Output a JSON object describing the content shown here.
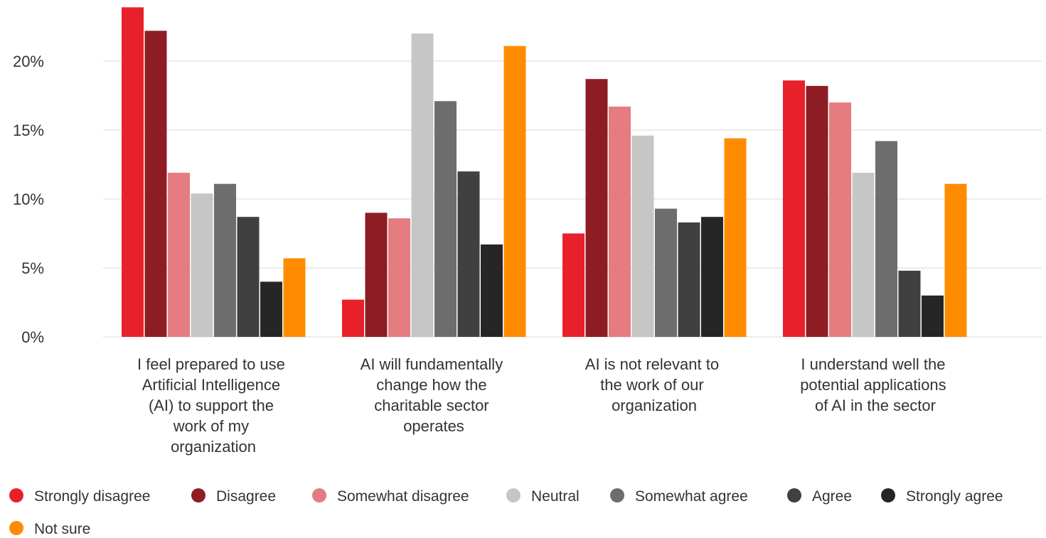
{
  "chart_data": {
    "type": "bar",
    "categories": [
      [
        "I feel prepared to use",
        "Artificial Intelligence",
        "(AI) to support the",
        "work of my",
        "organization"
      ],
      [
        "AI will fundamentally",
        "change how the",
        "charitable sector",
        "operates"
      ],
      [
        "AI is not relevant to",
        "the work of our",
        "organization"
      ],
      [
        "I understand well the",
        "potential applications",
        "of AI in the sector"
      ]
    ],
    "series": [
      {
        "name": "Strongly disagree",
        "color": "#e8202a",
        "values": [
          23.9,
          2.7,
          7.5,
          18.6
        ]
      },
      {
        "name": "Disagree",
        "color": "#8e1c24",
        "values": [
          22.2,
          9.0,
          18.7,
          18.2
        ]
      },
      {
        "name": "Somewhat disagree",
        "color": "#e47c80",
        "values": [
          11.9,
          8.6,
          16.7,
          17.0
        ]
      },
      {
        "name": "Neutral",
        "color": "#c6c6c6",
        "values": [
          10.4,
          22.0,
          14.6,
          11.9
        ]
      },
      {
        "name": "Somewhat agree",
        "color": "#6e6d6d",
        "values": [
          11.1,
          17.1,
          9.3,
          14.2
        ]
      },
      {
        "name": "Agree",
        "color": "#404040",
        "values": [
          8.7,
          12.0,
          8.3,
          4.8
        ]
      },
      {
        "name": "Strongly agree",
        "color": "#262626",
        "values": [
          4.0,
          6.7,
          8.7,
          3.0
        ]
      },
      {
        "name": "Not sure",
        "color": "#ff8c00",
        "values": [
          5.7,
          21.1,
          14.4,
          11.1
        ]
      }
    ],
    "yticks": [
      "0%",
      "5%",
      "10%",
      "15%",
      "20%"
    ],
    "ylim": [
      0,
      24
    ],
    "grid": true,
    "legend_position": "bottom"
  }
}
